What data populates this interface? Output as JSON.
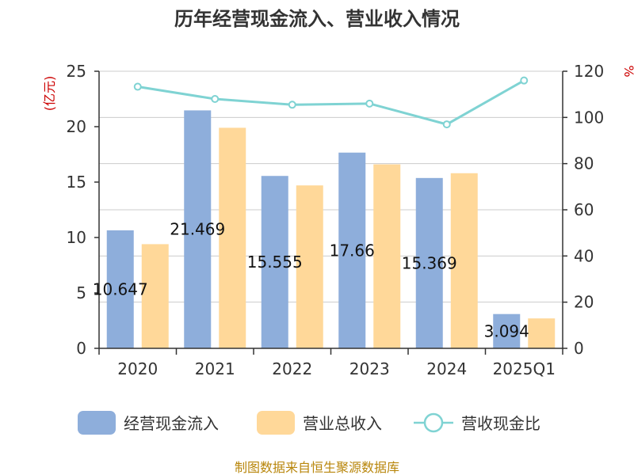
{
  "chart_data": {
    "type": "bar",
    "title": "历年经营现金流入、营业收入情况",
    "categories": [
      "2020",
      "2021",
      "2022",
      "2023",
      "2024",
      "2025Q1"
    ],
    "series": [
      {
        "name": "经营现金流入",
        "type": "bar",
        "axis": "left",
        "color": "#8eaedb",
        "values": [
          10.647,
          21.469,
          15.555,
          17.66,
          15.369,
          3.094
        ],
        "labels": [
          "10.647",
          "21.469",
          "15.555",
          "17.66",
          "15.369",
          "3.094"
        ]
      },
      {
        "name": "营业总收入",
        "type": "bar",
        "axis": "left",
        "color": "#ffd899",
        "values": [
          9.4,
          19.9,
          14.7,
          16.6,
          15.8,
          2.7
        ]
      },
      {
        "name": "营收现金比",
        "type": "line",
        "axis": "right",
        "color": "#7fd3d3",
        "values": [
          113.3,
          108.0,
          105.5,
          106.0,
          97.0,
          116.0
        ]
      }
    ],
    "left_axis": {
      "unit": "(亿元)",
      "ylim": [
        0,
        25
      ],
      "ticks": [
        "0",
        "5",
        "10",
        "15",
        "20",
        "25"
      ]
    },
    "right_axis": {
      "unit": "%",
      "ylim": [
        0,
        120
      ],
      "ticks": [
        "0",
        "20",
        "40",
        "60",
        "80",
        "100",
        "120"
      ]
    },
    "grid": true,
    "legend_position": "bottom",
    "source": "制图数据来自恒生聚源数据库"
  }
}
